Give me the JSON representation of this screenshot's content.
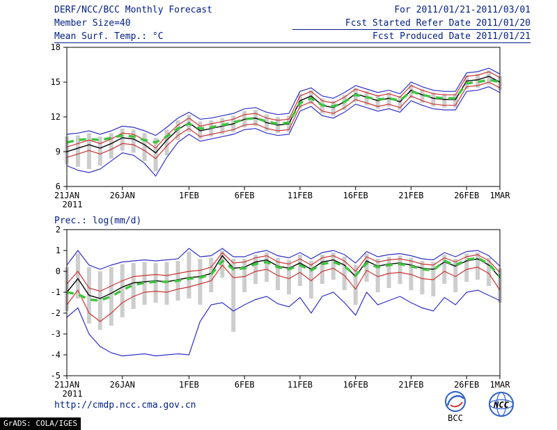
{
  "colors": {
    "header_text": "#001d86",
    "axis": "#000000",
    "logo_blue": "#2b5fc7",
    "logo_red": "#d03a3a",
    "grads_bg": "#000000",
    "grads_fg": "#ffffff"
  },
  "header": {
    "title": "DERF/NCC/BCC Monthly Forecast",
    "member_size": "Member Size=40",
    "right_line1": "For 2011/01/21-2011/03/01",
    "right_line2": "Fcst Started Refer Date 2011/01/20",
    "right_line3": "Fcst Produced Date 2011/01/21"
  },
  "footer": {
    "url": "http://cmdp.ncc.cma.gov.cn",
    "grads_credit": "GrADS: COLA/IGES",
    "logos": [
      {
        "label": "BCC"
      },
      {
        "label": "NCC"
      }
    ]
  },
  "chart_data": [
    {
      "type": "line",
      "title": "Mean Surf. Temp.: °C",
      "xlabel": "",
      "ylabel": "",
      "ylim": [
        6,
        18
      ],
      "yticks": [
        6,
        9,
        12,
        15,
        18
      ],
      "grid": false,
      "legend": "none",
      "n_points": 40,
      "x_tick_index": [
        0,
        5,
        11,
        16,
        21,
        26,
        31,
        36,
        39
      ],
      "x_tick_labels": [
        "21JAN",
        "26JAN",
        "1FEB",
        "6FEB",
        "11FEB",
        "16FEB",
        "21FEB",
        "26FEB",
        "1MAR"
      ],
      "x_sub_label": "2011",
      "series": [
        {
          "name": "ensemble-spread",
          "type": "bar-range",
          "color": "#cdcdcd",
          "low": [
            7.9,
            7.7,
            7.5,
            7.8,
            8.4,
            9.1,
            8.9,
            8.2,
            7.3,
            8.7,
            10.0,
            10.7,
            10.1,
            10.3,
            10.5,
            10.7,
            11.1,
            11.2,
            10.8,
            10.6,
            10.7,
            12.7,
            13.1,
            12.3,
            12.1,
            12.6,
            13.3,
            13.0,
            12.7,
            12.9,
            12.6,
            13.6,
            13.2,
            12.9,
            12.8,
            12.8,
            14.4,
            14.5,
            14.8,
            14.3
          ],
          "high": [
            10.3,
            10.4,
            10.6,
            10.3,
            10.6,
            11.0,
            10.9,
            10.6,
            10.2,
            10.9,
            11.7,
            12.2,
            11.6,
            11.7,
            11.9,
            12.1,
            12.5,
            12.6,
            12.2,
            12.0,
            12.1,
            14.0,
            14.3,
            13.6,
            13.4,
            13.9,
            14.5,
            14.2,
            13.9,
            14.1,
            13.8,
            14.8,
            14.4,
            14.1,
            14.0,
            14.0,
            15.6,
            15.7,
            16.0,
            15.5
          ]
        },
        {
          "name": "min",
          "type": "line",
          "color": "#2e2ec8",
          "width": 1.2,
          "values": [
            7.8,
            7.4,
            7.2,
            7.5,
            8.2,
            8.9,
            8.7,
            8.0,
            6.9,
            8.5,
            9.8,
            10.5,
            9.9,
            10.1,
            10.3,
            10.5,
            10.9,
            11.0,
            10.6,
            10.4,
            10.5,
            12.5,
            12.9,
            12.1,
            11.9,
            12.4,
            13.1,
            12.8,
            12.5,
            12.7,
            12.4,
            13.4,
            13.0,
            12.7,
            12.6,
            12.6,
            14.2,
            14.3,
            14.6,
            14.1
          ]
        },
        {
          "name": "max",
          "type": "line",
          "color": "#2e2ec8",
          "width": 1.2,
          "values": [
            10.5,
            10.6,
            10.8,
            10.5,
            10.8,
            11.2,
            11.1,
            10.8,
            10.4,
            11.1,
            11.9,
            12.4,
            11.8,
            11.9,
            12.1,
            12.3,
            12.7,
            12.8,
            12.4,
            12.2,
            12.3,
            14.2,
            14.5,
            13.8,
            13.6,
            14.1,
            14.7,
            14.4,
            14.1,
            14.3,
            14.0,
            15.0,
            14.6,
            14.3,
            14.2,
            14.2,
            15.8,
            15.9,
            16.2,
            15.7
          ]
        },
        {
          "name": "lower-quartile",
          "type": "line",
          "color": "#cc3333",
          "width": 1.2,
          "values": [
            8.5,
            8.8,
            9.1,
            8.8,
            9.2,
            9.7,
            9.6,
            9.1,
            8.4,
            9.5,
            10.4,
            11.0,
            10.3,
            10.5,
            10.7,
            10.9,
            11.3,
            11.4,
            11.0,
            10.8,
            10.9,
            12.9,
            13.3,
            12.5,
            12.3,
            12.8,
            13.5,
            13.2,
            12.9,
            13.1,
            12.8,
            13.8,
            13.4,
            13.1,
            13.0,
            13.0,
            14.6,
            14.7,
            15.0,
            14.5
          ]
        },
        {
          "name": "upper-quartile",
          "type": "line",
          "color": "#cc3333",
          "width": 1.2,
          "values": [
            9.4,
            9.7,
            10.0,
            9.7,
            10.1,
            10.6,
            10.5,
            10.0,
            9.3,
            10.4,
            11.3,
            11.9,
            11.2,
            11.4,
            11.6,
            11.8,
            12.2,
            12.3,
            11.9,
            11.7,
            11.8,
            13.8,
            14.2,
            13.4,
            13.2,
            13.7,
            14.4,
            14.1,
            13.8,
            14.0,
            13.7,
            14.7,
            14.3,
            14.0,
            13.9,
            13.9,
            15.5,
            15.6,
            15.9,
            15.4
          ]
        },
        {
          "name": "ensemble-mean",
          "type": "line",
          "color": "#111111",
          "width": 1.5,
          "values": [
            9.0,
            9.3,
            9.6,
            9.3,
            9.7,
            10.2,
            10.1,
            9.6,
            8.9,
            10.0,
            10.9,
            11.5,
            10.8,
            11.0,
            11.2,
            11.4,
            11.8,
            11.9,
            11.5,
            11.3,
            11.4,
            13.4,
            13.8,
            13.0,
            12.8,
            13.3,
            14.0,
            13.7,
            13.4,
            13.6,
            13.3,
            14.3,
            13.9,
            13.6,
            13.5,
            13.5,
            15.1,
            15.2,
            15.5,
            15.0
          ]
        },
        {
          "name": "climatology",
          "type": "line",
          "color": "#3fc43f",
          "width": 3.5,
          "dash": "10 8",
          "values": [
            9.8,
            10.0,
            10.1,
            10.0,
            10.2,
            10.4,
            10.3,
            10.0,
            9.8,
            10.3,
            11.0,
            11.4,
            11.0,
            11.1,
            11.3,
            11.5,
            11.8,
            11.9,
            11.6,
            11.4,
            11.5,
            13.2,
            13.6,
            13.0,
            12.9,
            13.3,
            13.9,
            13.7,
            13.5,
            13.6,
            13.4,
            14.2,
            13.9,
            13.7,
            13.6,
            13.6,
            14.9,
            15.0,
            15.2,
            15.0
          ]
        }
      ]
    },
    {
      "type": "line",
      "title": "Prec.: log(mm/d)",
      "xlabel": "",
      "ylabel": "",
      "ylim": [
        -5,
        2
      ],
      "yticks": [
        -5,
        -4,
        -3,
        -2,
        -1,
        0,
        1,
        2
      ],
      "grid": false,
      "legend": "none",
      "n_points": 40,
      "x_tick_index": [
        0,
        5,
        11,
        16,
        21,
        26,
        31,
        36,
        39
      ],
      "x_tick_labels": [
        "21JAN",
        "26JAN",
        "1FEB",
        "6FEB",
        "11FEB",
        "16FEB",
        "21FEB",
        "26FEB",
        "1MAR"
      ],
      "x_sub_label": "2011",
      "series": [
        {
          "name": "ensemble-spread",
          "type": "bar-range",
          "color": "#cdcdcd",
          "low": [
            -1.9,
            -1.3,
            -2.5,
            -2.8,
            -2.6,
            -2.2,
            -1.8,
            -1.6,
            -1.5,
            -1.6,
            -1.4,
            -1.3,
            -1.6,
            -1.0,
            -0.3,
            -2.9,
            -1.0,
            -0.6,
            -0.5,
            -0.9,
            -1.1,
            -0.7,
            -1.3,
            -0.6,
            -0.4,
            -0.9,
            -1.6,
            -0.5,
            -1.0,
            -0.8,
            -0.6,
            -0.9,
            -1.1,
            -1.2,
            -0.6,
            -1.0,
            -0.5,
            -0.4,
            -0.7,
            -1.5
          ],
          "high": [
            0.2,
            0.85,
            0.2,
            0.0,
            0.2,
            0.35,
            0.4,
            0.45,
            0.4,
            0.45,
            0.5,
            0.95,
            0.6,
            0.65,
            1.0,
            0.6,
            0.6,
            0.8,
            0.9,
            0.65,
            0.55,
            0.8,
            0.5,
            0.8,
            0.9,
            0.7,
            0.3,
            0.85,
            0.6,
            0.7,
            0.75,
            0.65,
            0.5,
            0.45,
            0.8,
            0.6,
            0.85,
            0.9,
            0.65,
            0.15
          ]
        },
        {
          "name": "min",
          "type": "line",
          "color": "#2e2ec8",
          "width": 1.2,
          "values": [
            -2.2,
            -1.75,
            -3.0,
            -3.6,
            -3.9,
            -4.05,
            -4.0,
            -3.95,
            -4.05,
            -4.0,
            -3.95,
            -4.0,
            -2.4,
            -1.6,
            -1.5,
            -1.9,
            -1.6,
            -1.35,
            -1.2,
            -1.55,
            -1.7,
            -1.25,
            -2.0,
            -1.2,
            -1.0,
            -1.5,
            -2.1,
            -1.0,
            -1.6,
            -1.4,
            -1.2,
            -1.5,
            -1.75,
            -1.9,
            -1.25,
            -1.6,
            -1.0,
            -0.9,
            -1.15,
            -1.4
          ]
        },
        {
          "name": "max",
          "type": "line",
          "color": "#2e2ec8",
          "width": 1.2,
          "values": [
            0.3,
            1.0,
            0.3,
            0.1,
            0.3,
            0.45,
            0.5,
            0.55,
            0.5,
            0.55,
            0.6,
            1.1,
            0.7,
            0.75,
            1.1,
            0.7,
            0.7,
            0.9,
            1.0,
            0.75,
            0.65,
            0.9,
            0.6,
            0.9,
            1.0,
            0.8,
            0.4,
            0.95,
            0.7,
            0.8,
            0.85,
            0.75,
            0.6,
            0.55,
            0.9,
            0.7,
            0.95,
            1.0,
            0.75,
            0.25
          ]
        },
        {
          "name": "lower-quartile",
          "type": "line",
          "color": "#cc3333",
          "width": 1.2,
          "values": [
            -1.6,
            -0.9,
            -2.0,
            -2.4,
            -2.0,
            -1.5,
            -1.2,
            -1.0,
            -0.95,
            -1.0,
            -0.85,
            -0.75,
            -0.6,
            -0.45,
            0.3,
            -0.3,
            -0.25,
            0.0,
            0.1,
            -0.2,
            -0.35,
            -0.05,
            -0.45,
            0.0,
            0.15,
            -0.2,
            -0.85,
            0.05,
            -0.25,
            -0.1,
            -0.05,
            -0.15,
            -0.35,
            -0.4,
            0.0,
            -0.25,
            0.1,
            0.2,
            -0.1,
            -0.9
          ]
        },
        {
          "name": "upper-quartile",
          "type": "line",
          "color": "#cc3333",
          "width": 1.2,
          "values": [
            -0.6,
            0.0,
            -0.8,
            -0.95,
            -0.7,
            -0.45,
            -0.25,
            -0.2,
            -0.15,
            -0.2,
            -0.1,
            0.0,
            0.05,
            0.2,
            0.9,
            0.4,
            0.45,
            0.65,
            0.75,
            0.45,
            0.35,
            0.6,
            0.3,
            0.65,
            0.75,
            0.5,
            0.0,
            0.7,
            0.45,
            0.55,
            0.6,
            0.5,
            0.35,
            0.3,
            0.65,
            0.45,
            0.7,
            0.8,
            0.5,
            -0.05
          ]
        },
        {
          "name": "ensemble-mean",
          "type": "line",
          "color": "#111111",
          "width": 1.5,
          "values": [
            -1.0,
            -0.35,
            -1.15,
            -1.3,
            -1.05,
            -0.75,
            -0.55,
            -0.5,
            -0.45,
            -0.5,
            -0.4,
            -0.3,
            -0.25,
            -0.1,
            0.75,
            0.15,
            0.2,
            0.45,
            0.55,
            0.25,
            0.15,
            0.4,
            0.1,
            0.45,
            0.55,
            0.3,
            -0.25,
            0.5,
            0.25,
            0.35,
            0.4,
            0.3,
            0.15,
            0.1,
            0.45,
            0.25,
            0.5,
            0.6,
            0.3,
            -0.3
          ]
        },
        {
          "name": "climatology",
          "type": "line",
          "color": "#3fc43f",
          "width": 3.5,
          "dash": "10 8",
          "values": [
            -1.0,
            -1.1,
            -1.35,
            -1.4,
            -1.2,
            -0.9,
            -0.65,
            -0.55,
            -0.5,
            -0.5,
            -0.45,
            -0.35,
            -0.3,
            -0.15,
            0.5,
            0.1,
            0.15,
            0.35,
            0.45,
            0.2,
            0.1,
            0.3,
            0.05,
            0.35,
            0.45,
            0.25,
            -0.2,
            0.4,
            0.2,
            0.3,
            0.35,
            0.25,
            0.1,
            0.05,
            0.5,
            0.3,
            0.55,
            0.65,
            0.35,
            -0.25
          ]
        }
      ]
    }
  ]
}
